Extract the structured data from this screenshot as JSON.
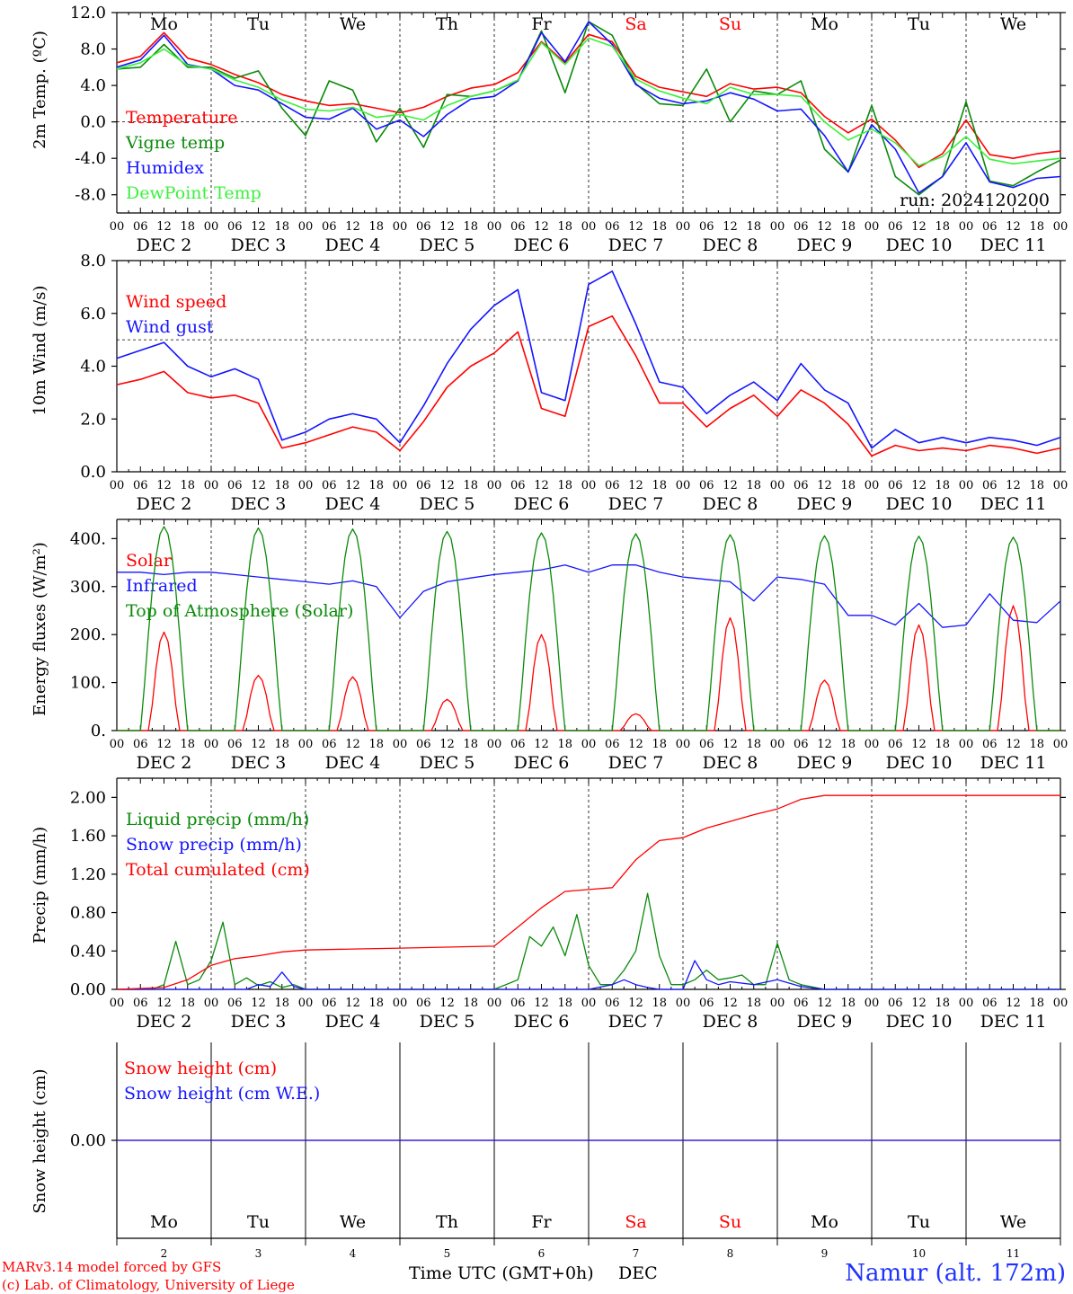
{
  "footer": {
    "credit_line1": "MARv3.14 model forced by GFS",
    "credit_line2": "(c) Lab. of Climatology, University of Liege",
    "station": "Namur (alt. 172m)",
    "time_label": "Time UTC (GMT+0h)",
    "month_label": "DEC"
  },
  "colors": {
    "red": "#ff0000",
    "green": "#0a8a0a",
    "blue": "#1414ff",
    "light_green": "#3cf03c",
    "axis": "#000000",
    "grid": "#000000"
  },
  "hour_ticks": [
    "00",
    "06",
    "12",
    "18"
  ],
  "weekdays": [
    "Mo",
    "Tu",
    "We",
    "Th",
    "Fr",
    "Sa",
    "Su",
    "Mo",
    "Tu",
    "We"
  ],
  "weekend_days": [
    5,
    6
  ],
  "day_labels": [
    "DEC  2",
    "DEC  3",
    "DEC  4",
    "DEC  5",
    "DEC  6",
    "DEC  7",
    "DEC  8",
    "DEC  9",
    "DEC 10",
    "DEC 11"
  ],
  "day_numbers": [
    "2",
    "3",
    "4",
    "5",
    "6",
    "7",
    "8",
    "9",
    "10",
    "11"
  ],
  "chart_data": [
    {
      "type": "line",
      "ylabel": "2m Temp. (ºC)",
      "ylim": [
        -10,
        12
      ],
      "yticks": [
        -8,
        -4,
        0,
        4,
        8,
        12
      ],
      "ytick_labels": [
        "-8.0",
        "-4.0",
        "0.0",
        "4.0",
        "8.0",
        "12.0"
      ],
      "ref_line": 0,
      "annotation": "run: 2024120200",
      "x_unit": "hours since DEC 2 00 UTC",
      "series": [
        {
          "name": "Temperature",
          "color": "red",
          "x": [
            0,
            6,
            12,
            18,
            24,
            30,
            36,
            42,
            48,
            54,
            60,
            66,
            72,
            78,
            84,
            90,
            96,
            102,
            108,
            114,
            120,
            126,
            132,
            138,
            144,
            150,
            156,
            162,
            168,
            174,
            180,
            186,
            192,
            198,
            204,
            210,
            216,
            222,
            228,
            234,
            240
          ],
          "y": [
            6.5,
            7.2,
            9.8,
            7.0,
            6.3,
            5.2,
            4.3,
            3.0,
            2.3,
            1.8,
            2.0,
            1.5,
            1.0,
            1.6,
            2.8,
            3.7,
            4.1,
            5.4,
            8.8,
            6.5,
            9.6,
            8.8,
            5.0,
            3.8,
            3.3,
            2.8,
            4.2,
            3.6,
            3.8,
            3.2,
            0.6,
            -1.2,
            0.3,
            -2.0,
            -5.0,
            -3.5,
            0.2,
            -3.6,
            -4.0,
            -3.5,
            -3.2
          ]
        },
        {
          "name": "Vigne temp",
          "color": "green",
          "x": [
            0,
            6,
            12,
            18,
            24,
            30,
            36,
            42,
            48,
            54,
            60,
            66,
            72,
            78,
            84,
            90,
            96,
            102,
            108,
            114,
            120,
            126,
            132,
            138,
            144,
            150,
            156,
            162,
            168,
            174,
            180,
            186,
            192,
            198,
            204,
            210,
            216,
            222,
            228,
            234,
            240
          ],
          "y": [
            5.8,
            6.0,
            8.5,
            6.0,
            6.0,
            4.8,
            5.6,
            1.5,
            -1.5,
            4.5,
            3.5,
            -2.2,
            1.5,
            -2.8,
            3.0,
            2.8,
            3.4,
            4.5,
            10.0,
            3.2,
            11.0,
            9.5,
            4.2,
            2.0,
            1.8,
            5.8,
            0.0,
            3.4,
            3.0,
            4.5,
            -3.0,
            -5.5,
            1.8,
            -6.0,
            -8.0,
            -6.0,
            2.2,
            -6.5,
            -7.0,
            -5.5,
            -4.2
          ]
        },
        {
          "name": "Humidex",
          "color": "blue",
          "x": [
            0,
            6,
            12,
            18,
            24,
            30,
            36,
            42,
            48,
            54,
            60,
            66,
            72,
            78,
            84,
            90,
            96,
            102,
            108,
            114,
            120,
            126,
            132,
            138,
            144,
            150,
            156,
            162,
            168,
            174,
            180,
            186,
            192,
            198,
            204,
            210,
            216,
            222,
            228,
            234,
            240
          ],
          "y": [
            6.0,
            6.8,
            9.5,
            6.3,
            5.8,
            4.0,
            3.5,
            2.0,
            0.5,
            0.3,
            1.5,
            -0.8,
            0.2,
            -1.6,
            0.8,
            2.5,
            2.8,
            4.5,
            9.8,
            6.6,
            11.0,
            8.5,
            4.1,
            2.6,
            2.0,
            2.3,
            3.2,
            2.5,
            1.2,
            1.4,
            -1.5,
            -5.5,
            -0.3,
            -3.0,
            -7.8,
            -6.0,
            -2.3,
            -6.6,
            -7.2,
            -6.2,
            -6.0
          ]
        },
        {
          "name": "DewPoint Temp",
          "color": "light_green",
          "x": [
            0,
            6,
            12,
            18,
            24,
            30,
            36,
            42,
            48,
            54,
            60,
            66,
            72,
            78,
            84,
            90,
            96,
            102,
            108,
            114,
            120,
            126,
            132,
            138,
            144,
            150,
            156,
            162,
            168,
            174,
            180,
            186,
            192,
            198,
            204,
            210,
            216,
            222,
            228,
            234,
            240
          ],
          "y": [
            5.8,
            6.5,
            8.0,
            6.2,
            5.8,
            4.6,
            3.8,
            2.4,
            1.4,
            1.2,
            1.6,
            0.5,
            0.8,
            0.2,
            1.8,
            2.8,
            3.4,
            4.6,
            8.7,
            6.3,
            9.2,
            8.3,
            4.7,
            3.4,
            2.6,
            2.0,
            3.8,
            3.0,
            3.0,
            2.8,
            0.0,
            -2.0,
            -0.8,
            -2.3,
            -4.8,
            -3.8,
            -1.6,
            -4.1,
            -4.6,
            -4.3,
            -4.0
          ]
        }
      ]
    },
    {
      "type": "line",
      "ylabel": "10m Wind (m/s)",
      "ylim": [
        0,
        8
      ],
      "yticks": [
        0,
        2,
        4,
        6,
        8
      ],
      "ytick_labels": [
        "0.0",
        "2.0",
        "4.0",
        "6.0",
        "8.0"
      ],
      "ref_line": 5,
      "x_unit": "hours since DEC 2 00 UTC",
      "series": [
        {
          "name": "Wind speed",
          "color": "red",
          "x": [
            0,
            6,
            12,
            18,
            24,
            30,
            36,
            42,
            48,
            54,
            60,
            66,
            72,
            78,
            84,
            90,
            96,
            102,
            108,
            114,
            120,
            126,
            132,
            138,
            144,
            150,
            156,
            162,
            168,
            174,
            180,
            186,
            192,
            198,
            204,
            210,
            216,
            222,
            228,
            234,
            240
          ],
          "y": [
            3.3,
            3.5,
            3.8,
            3.0,
            2.8,
            2.9,
            2.6,
            0.9,
            1.1,
            1.4,
            1.7,
            1.5,
            0.8,
            1.9,
            3.2,
            4.0,
            4.5,
            5.3,
            2.4,
            2.1,
            5.5,
            5.9,
            4.4,
            2.6,
            2.6,
            1.7,
            2.4,
            2.9,
            2.1,
            3.1,
            2.6,
            1.8,
            0.6,
            1.0,
            0.8,
            0.9,
            0.8,
            1.0,
            0.9,
            0.7,
            0.9
          ]
        },
        {
          "name": "Wind gust",
          "color": "blue",
          "x": [
            0,
            6,
            12,
            18,
            24,
            30,
            36,
            42,
            48,
            54,
            60,
            66,
            72,
            78,
            84,
            90,
            96,
            102,
            108,
            114,
            120,
            126,
            132,
            138,
            144,
            150,
            156,
            162,
            168,
            174,
            180,
            186,
            192,
            198,
            204,
            210,
            216,
            222,
            228,
            234,
            240
          ],
          "y": [
            4.3,
            4.6,
            4.9,
            4.0,
            3.6,
            3.9,
            3.5,
            1.2,
            1.5,
            2.0,
            2.2,
            2.0,
            1.1,
            2.5,
            4.1,
            5.4,
            6.3,
            6.9,
            3.0,
            2.7,
            7.1,
            7.6,
            5.6,
            3.4,
            3.2,
            2.2,
            2.9,
            3.4,
            2.7,
            4.1,
            3.1,
            2.6,
            0.9,
            1.6,
            1.1,
            1.3,
            1.1,
            1.3,
            1.2,
            1.0,
            1.3
          ]
        }
      ]
    },
    {
      "type": "line",
      "ylabel": "Energy fluxes (W/m²)",
      "ylim": [
        0,
        440
      ],
      "yticks": [
        0,
        100,
        200,
        300,
        400
      ],
      "ytick_labels": [
        "0.",
        "100.",
        "200.",
        "300.",
        "400."
      ],
      "x_unit": "hours since DEC 2 00 UTC",
      "series": [
        {
          "name": "Solar",
          "color": "red",
          "daily_peak": [
            205,
            115,
            112,
            65,
            200,
            35,
            235,
            105,
            220,
            260
          ]
        },
        {
          "name": "Infrared",
          "color": "blue",
          "x": [
            0,
            6,
            12,
            18,
            24,
            30,
            36,
            42,
            48,
            54,
            60,
            66,
            72,
            78,
            84,
            90,
            96,
            102,
            108,
            114,
            120,
            126,
            132,
            138,
            144,
            150,
            156,
            162,
            168,
            174,
            180,
            186,
            192,
            198,
            204,
            210,
            216,
            222,
            228,
            234,
            240
          ],
          "y": [
            330,
            330,
            325,
            330,
            330,
            325,
            320,
            315,
            310,
            305,
            312,
            300,
            235,
            290,
            310,
            318,
            325,
            330,
            335,
            345,
            330,
            345,
            345,
            330,
            320,
            315,
            310,
            270,
            320,
            315,
            305,
            240,
            240,
            220,
            265,
            215,
            220,
            285,
            230,
            225,
            270
          ]
        },
        {
          "name": "Top of Atmosphere (Solar)",
          "color": "green",
          "daily_peak": [
            425,
            422,
            420,
            415,
            412,
            410,
            408,
            406,
            405,
            403
          ]
        }
      ]
    },
    {
      "type": "line",
      "ylabel": "Precip (mm/h)",
      "ylim": [
        0,
        2.2
      ],
      "yticks": [
        0,
        0.4,
        0.8,
        1.2,
        1.6,
        2.0
      ],
      "ytick_labels": [
        "0.00",
        "0.40",
        "0.80",
        "1.20",
        "1.60",
        "2.00"
      ],
      "x_unit": "hours since DEC 2 00 UTC",
      "series": [
        {
          "name": "Liquid precip (mm/h)",
          "color": "green",
          "x": [
            0,
            9,
            12,
            15,
            18,
            21,
            24,
            27,
            30,
            33,
            36,
            39,
            42,
            45,
            48,
            72,
            96,
            102,
            105,
            108,
            111,
            114,
            117,
            120,
            123,
            126,
            129,
            132,
            135,
            138,
            141,
            144,
            147,
            150,
            153,
            156,
            159,
            162,
            165,
            168,
            171,
            174,
            180,
            240
          ],
          "y": [
            0,
            0,
            0.05,
            0.5,
            0.05,
            0.1,
            0.3,
            0.7,
            0.05,
            0.12,
            0.04,
            0.08,
            0.02,
            0.05,
            0,
            0,
            0,
            0.1,
            0.55,
            0.45,
            0.65,
            0.35,
            0.78,
            0.25,
            0.05,
            0.05,
            0.2,
            0.4,
            1.0,
            0.35,
            0.05,
            0.05,
            0.1,
            0.2,
            0.1,
            0.12,
            0.15,
            0.05,
            0.05,
            0.48,
            0.1,
            0.05,
            0,
            0
          ]
        },
        {
          "name": "Snow precip (mm/h)",
          "color": "blue",
          "x": [
            0,
            33,
            36,
            39,
            42,
            45,
            48,
            120,
            126,
            129,
            132,
            135,
            138,
            144,
            147,
            150,
            153,
            156,
            162,
            168,
            174,
            180,
            240
          ],
          "y": [
            0,
            0,
            0.05,
            0.03,
            0.18,
            0.03,
            0,
            0,
            0.05,
            0.1,
            0.05,
            0.02,
            0,
            0,
            0.3,
            0.1,
            0.05,
            0.08,
            0.05,
            0.1,
            0.03,
            0,
            0
          ]
        },
        {
          "name": "Total cumulated (cm)",
          "color": "red",
          "x": [
            0,
            12,
            18,
            24,
            30,
            36,
            42,
            48,
            60,
            72,
            84,
            96,
            102,
            108,
            114,
            120,
            126,
            132,
            138,
            144,
            150,
            156,
            162,
            168,
            174,
            180,
            192,
            204,
            216,
            228,
            240
          ],
          "y": [
            0,
            0.02,
            0.1,
            0.25,
            0.32,
            0.35,
            0.39,
            0.41,
            0.42,
            0.43,
            0.44,
            0.45,
            0.65,
            0.85,
            1.02,
            1.04,
            1.06,
            1.35,
            1.55,
            1.58,
            1.68,
            1.75,
            1.82,
            1.88,
            1.98,
            2.02,
            2.02,
            2.02,
            2.02,
            2.02,
            2.02
          ]
        }
      ]
    },
    {
      "type": "line",
      "ylabel": "Snow height (cm)",
      "ylim": [
        -1,
        1
      ],
      "yticks": [
        0
      ],
      "ytick_labels": [
        "0.00"
      ],
      "x_unit": "hours since DEC 2 00 UTC",
      "series": [
        {
          "name": "Snow height (cm)",
          "color": "red",
          "x": [
            0,
            240
          ],
          "y": [
            0,
            0
          ]
        },
        {
          "name": "Snow height (cm W.E.)",
          "color": "blue",
          "x": [
            0,
            240
          ],
          "y": [
            0,
            0
          ]
        }
      ]
    }
  ]
}
